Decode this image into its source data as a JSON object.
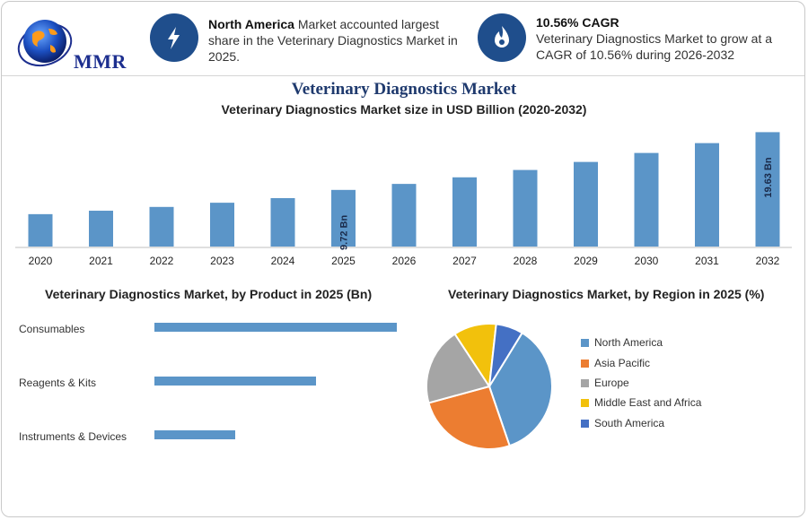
{
  "header": {
    "logo_text": "MMR",
    "highlight1": {
      "bold": "North America",
      "rest": " Market accounted largest share in the Veterinary Diagnostics Market in 2025.",
      "icon": "lightning-icon"
    },
    "highlight2": {
      "bold": "10.56% CAGR",
      "rest": "Veterinary Diagnostics Market to grow at a CAGR of 10.56% during 2026-2032",
      "icon": "flame-icon"
    }
  },
  "colors": {
    "bar": "#5b95c8",
    "accent": "#1f4e8c",
    "title": "#1f3a6e"
  },
  "chart_data": [
    {
      "type": "bar",
      "title": "Veterinary Diagnostics Market",
      "subtitle": "Veterinary Diagnostics Market size in USD Billion (2020-2032)",
      "categories": [
        "2020",
        "2021",
        "2022",
        "2023",
        "2024",
        "2025",
        "2026",
        "2027",
        "2028",
        "2029",
        "2030",
        "2031",
        "2032"
      ],
      "values": [
        5.56,
        6.15,
        6.8,
        7.52,
        8.31,
        9.72,
        10.75,
        11.88,
        13.14,
        14.52,
        16.06,
        17.75,
        19.63
      ],
      "data_labels": {
        "5": "9.72 Bn",
        "12": "19.63 Bn"
      },
      "ylim": [
        0,
        20
      ],
      "grid": false
    },
    {
      "type": "bar",
      "orientation": "horizontal",
      "title": "Veterinary Diagnostics Market, by Product in 2025 (Bn)",
      "categories": [
        "Consumables",
        "Reagents & Kits",
        "Instruments & Devices"
      ],
      "values": [
        4.5,
        3.0,
        1.5
      ],
      "grid": false
    },
    {
      "type": "pie",
      "title": "Veterinary Diagnostics Market, by Region in 2025 (%)",
      "labels": [
        "North America",
        "Asia Pacific",
        "Europe",
        "Middle East and Africa",
        "South America"
      ],
      "values": [
        36,
        26,
        20,
        11,
        7
      ],
      "colors": [
        "#5b95c8",
        "#ec7d31",
        "#a5a5a5",
        "#f2c10c",
        "#4470c4"
      ],
      "legend": "right"
    }
  ]
}
